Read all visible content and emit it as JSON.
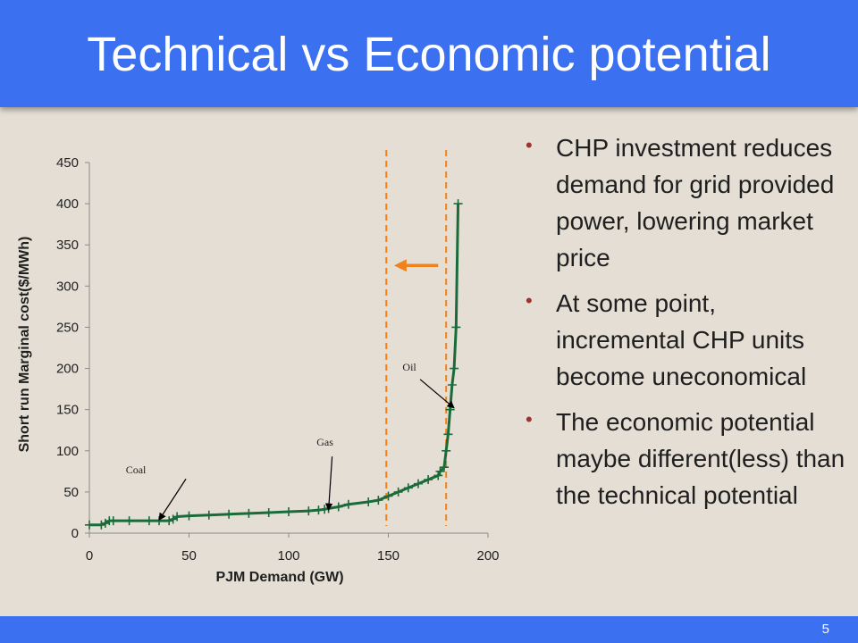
{
  "slide": {
    "title": "Technical vs Economic potential",
    "page_number": "5"
  },
  "bullets": [
    "CHP investment reduces demand for grid provided power, lowering market price",
    "At some point, incremental CHP units become uneconomical",
    "The economic potential maybe different(less) than the technical potential"
  ],
  "colors": {
    "title_bar": "#3b70f0",
    "background": "#e4ded4",
    "curve": "#1b6b3a",
    "potential_lines": "#f0821e",
    "bullet_marker": "#a0322e"
  },
  "chart_data": {
    "type": "line",
    "title": "",
    "xlabel": "PJM Demand (GW)",
    "ylabel": "Short run Marginal cost($/MWh)",
    "xlim": [
      0,
      200
    ],
    "ylim": [
      0,
      450
    ],
    "x_ticks": [
      0,
      50,
      100,
      150,
      200
    ],
    "y_ticks": [
      0,
      50,
      100,
      150,
      200,
      250,
      300,
      350,
      400,
      450
    ],
    "marker": "plus",
    "series": [
      {
        "name": "",
        "x": [
          0,
          6,
          8,
          10,
          12,
          20,
          30,
          35,
          40,
          42,
          44,
          50,
          60,
          70,
          80,
          90,
          100,
          110,
          115,
          118,
          120,
          125,
          130,
          140,
          145,
          150,
          155,
          160,
          165,
          170,
          175,
          176,
          178,
          179,
          180,
          181,
          182,
          183,
          184,
          185
        ],
        "y": [
          10,
          10,
          12,
          15,
          15,
          15,
          15,
          15,
          15,
          17,
          20,
          21,
          22,
          23,
          24,
          25,
          26,
          27,
          28,
          29,
          30,
          32,
          35,
          38,
          40,
          45,
          50,
          55,
          60,
          65,
          70,
          75,
          80,
          100,
          120,
          150,
          180,
          200,
          250,
          400
        ]
      }
    ],
    "vertical_lines": [
      {
        "x": 149,
        "style": "dashed"
      },
      {
        "x": 179,
        "style": "dashed"
      }
    ],
    "arrow": {
      "from_x": 175,
      "to_x": 156,
      "y": 325,
      "direction": "left"
    },
    "annotations": [
      {
        "text": "Coal",
        "x": 35,
        "y": 16
      },
      {
        "text": "Gas",
        "x": 120,
        "y": 28
      },
      {
        "text": "Oil",
        "x": 183,
        "y": 152
      }
    ],
    "grid": false,
    "legend": "none"
  }
}
